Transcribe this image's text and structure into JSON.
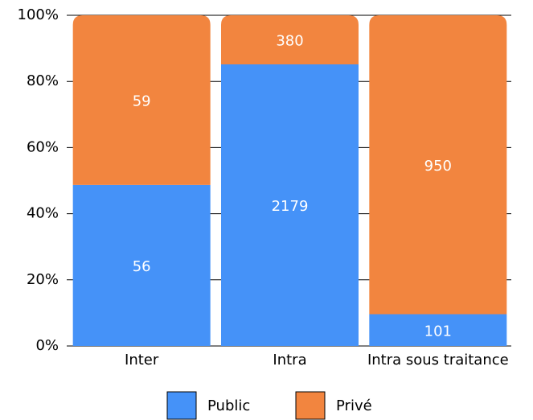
{
  "chart_data": {
    "type": "bar",
    "stacking": "percent",
    "categories": [
      "Inter",
      "Intra",
      "Intra sous traitance"
    ],
    "series": [
      {
        "name": "Public",
        "color": "#4592f8",
        "values": [
          56,
          2179,
          101
        ]
      },
      {
        "name": "Privé",
        "color": "#f2853f",
        "values": [
          59,
          380,
          950
        ]
      }
    ],
    "ylim": [
      0,
      100
    ],
    "yticks": [
      {
        "value": 0,
        "label": "0%"
      },
      {
        "value": 20,
        "label": "20%"
      },
      {
        "value": 40,
        "label": "40%"
      },
      {
        "value": 60,
        "label": "60%"
      },
      {
        "value": 80,
        "label": "80%"
      },
      {
        "value": 100,
        "label": "100%"
      }
    ],
    "grid": true,
    "legend": "bottom"
  }
}
